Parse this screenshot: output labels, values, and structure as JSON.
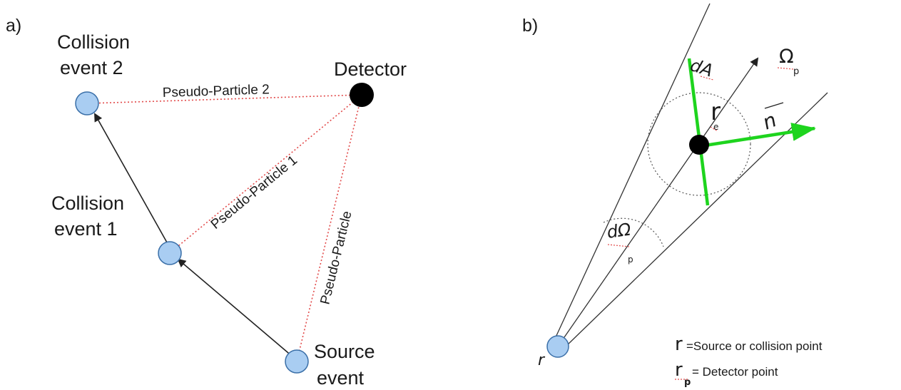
{
  "panel_a": {
    "tag": "a)",
    "nodes": {
      "collision2": [
        "Collision",
        "event 2"
      ],
      "collision1": [
        "Collision",
        "event 1"
      ],
      "source": [
        "Source",
        "event"
      ],
      "detector": "Detector"
    },
    "links": {
      "pp2": "Pseudo-Particle 2",
      "pp1": "Pseudo-Particle 1",
      "pp": "Pseudo-Particle"
    }
  },
  "panel_b": {
    "tag": "b)",
    "symbols": {
      "dA": "dA",
      "omega_p": "Ω",
      "omega_sub": "p",
      "r_e": "r",
      "r_e_sub": "e",
      "n": "n",
      "d_omega": "dΩ",
      "d_omega_sub": "p",
      "r_src": "r"
    },
    "legend": {
      "r_symbol": "r",
      "r_text": "=Source or collision point",
      "rp_symbol": "r",
      "rp_sub": "p",
      "rp_text": " = Detector point"
    }
  },
  "colors": {
    "node_fill": "#a9cdf2",
    "node_stroke": "#3a6fa8",
    "detector": "#000000",
    "dotted_link": "#e24a4a",
    "arrow": "#222222",
    "normal_green": "#1ed41e",
    "circle_dotted": "#555555",
    "underline_red": "#e24a4a"
  }
}
